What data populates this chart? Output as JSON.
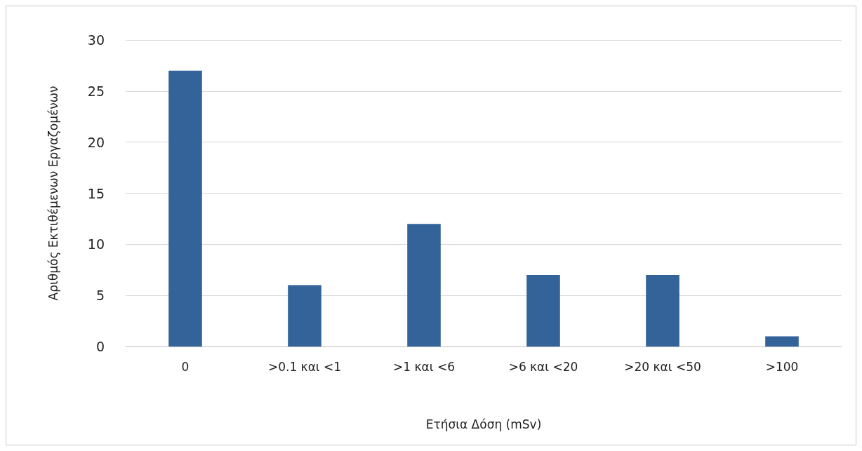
{
  "chart_data": {
    "type": "bar",
    "xlabel": "Ετήσια Δόση (mSv)",
    "ylabel": "Αριθμός Εκτιθέμενων Εργαζομένων",
    "categories": [
      "0",
      ">0.1 και <1",
      ">1 και <6",
      ">6 και <20",
      ">20 και <50",
      ">100"
    ],
    "values": [
      27,
      6,
      12,
      7,
      7,
      1
    ],
    "color": "#336399",
    "ylim": [
      0,
      30
    ],
    "yticks": [
      0,
      5,
      10,
      15,
      20,
      25,
      30
    ],
    "grid": "y"
  }
}
